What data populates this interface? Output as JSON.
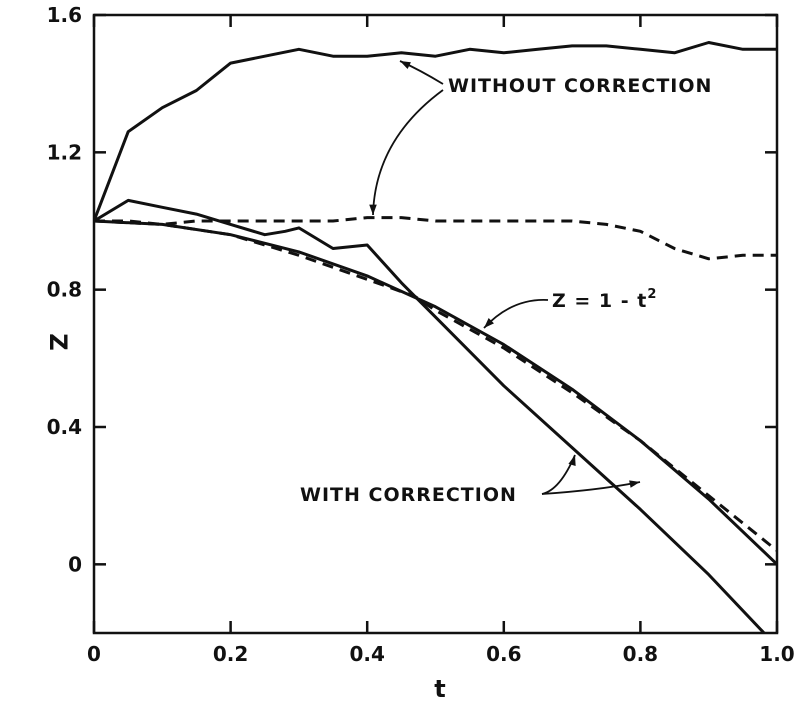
{
  "chart_data": {
    "type": "line",
    "xlabel": "t",
    "ylabel": "Z",
    "xlim": [
      0,
      1.0
    ],
    "ylim": [
      -0.2,
      1.6
    ],
    "x_ticks": [
      0,
      0.2,
      0.4,
      0.6,
      0.8,
      1.0
    ],
    "x_tick_labels": [
      "0",
      "0.2",
      "0.4",
      "0.6",
      "0.8",
      "1.0"
    ],
    "y_ticks": [
      0,
      0.4,
      0.8,
      1.2,
      1.6
    ],
    "y_tick_labels": [
      "0",
      "0.4",
      "0.8",
      "1.2",
      "1.6"
    ],
    "grid": false,
    "series": [
      {
        "style": "solid",
        "x": [
          0,
          0.05,
          0.1,
          0.15,
          0.2,
          0.25,
          0.3,
          0.35,
          0.4,
          0.45,
          0.5,
          0.55,
          0.6,
          0.65,
          0.7,
          0.75,
          0.8,
          0.85,
          0.9,
          0.95,
          1.0
        ],
        "values": [
          1.0,
          1.26,
          1.33,
          1.38,
          1.46,
          1.48,
          1.5,
          1.48,
          1.48,
          1.49,
          1.48,
          1.5,
          1.49,
          1.5,
          1.51,
          1.51,
          1.5,
          1.49,
          1.52,
          1.5,
          1.5
        ]
      },
      {
        "style": "dashed",
        "x": [
          0,
          0.05,
          0.1,
          0.15,
          0.2,
          0.25,
          0.3,
          0.35,
          0.4,
          0.45,
          0.5,
          0.55,
          0.6,
          0.65,
          0.7,
          0.75,
          0.8,
          0.85,
          0.9,
          0.95,
          1.0
        ],
        "values": [
          1.0,
          1.0,
          0.99,
          1.0,
          1.0,
          1.0,
          1.0,
          1.0,
          1.01,
          1.01,
          1.0,
          1.0,
          1.0,
          1.0,
          1.0,
          0.99,
          0.97,
          0.92,
          0.89,
          0.9,
          0.9
        ]
      },
      {
        "style": "solid",
        "x": [
          0,
          0.05,
          0.1,
          0.15,
          0.2,
          0.25,
          0.28,
          0.3,
          0.35,
          0.4,
          0.45,
          0.5,
          0.6,
          0.7,
          0.8,
          0.9,
          1.0
        ],
        "values": [
          1.0,
          1.06,
          1.04,
          1.02,
          0.99,
          0.96,
          0.97,
          0.98,
          0.92,
          0.93,
          0.82,
          0.72,
          0.52,
          0.34,
          0.16,
          -0.03,
          -0.24
        ]
      },
      {
        "style": "dashed",
        "x": [
          0,
          0.1,
          0.2,
          0.3,
          0.4,
          0.47,
          0.5,
          0.6,
          0.7,
          0.8,
          0.9,
          1.0
        ],
        "values": [
          1.0,
          0.99,
          0.96,
          0.9,
          0.83,
          0.78,
          0.74,
          0.63,
          0.5,
          0.36,
          0.2,
          0.04
        ]
      },
      {
        "style": "solid",
        "x": [
          0,
          0.1,
          0.2,
          0.3,
          0.4,
          0.5,
          0.6,
          0.7,
          0.8,
          0.9,
          1.0
        ],
        "values": [
          1.0,
          0.99,
          0.96,
          0.91,
          0.84,
          0.75,
          0.64,
          0.51,
          0.36,
          0.19,
          0.0
        ]
      }
    ],
    "annotations": [
      {
        "text": "WITHOUT CORRECTION"
      },
      {
        "text": "Z = 1 - t",
        "superscript": "2"
      },
      {
        "text": "WITH CORRECTION"
      }
    ]
  }
}
